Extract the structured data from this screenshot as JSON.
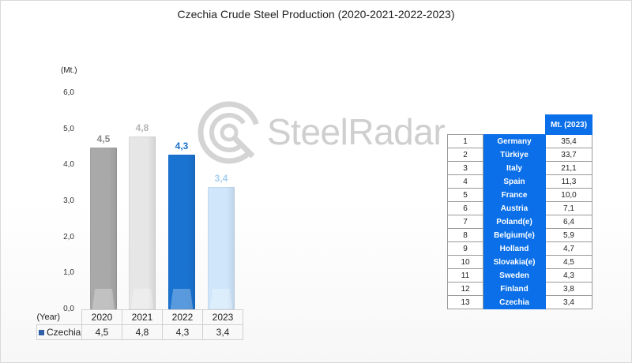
{
  "chart_data": {
    "type": "bar",
    "title": "Czechia Crude Steel Production (2020-2021-2022-2023)",
    "unit": "(Mt.)",
    "x_axis_label": "(Year)",
    "categories": [
      "2020",
      "2021",
      "2022",
      "2023"
    ],
    "series": [
      {
        "name": "Czechia",
        "values": [
          4.5,
          4.8,
          4.3,
          3.4
        ]
      }
    ],
    "data_labels": [
      "4,5",
      "4,8",
      "4,3",
      "3,4"
    ],
    "bar_colors": [
      "#a9a9a9",
      "#e6e6e6",
      "#1a73d1",
      "#cfe6fb"
    ],
    "label_colors": [
      "#8a8a8a",
      "#b4b4b4",
      "#1a6fc9",
      "#a6cdef"
    ],
    "ylim": [
      0,
      6
    ],
    "yticks": [
      "0,0",
      "1,0",
      "2,0",
      "3,0",
      "4,0",
      "5,0",
      "6,0"
    ],
    "table": {
      "row_label": "Czechia",
      "values": [
        "4,5",
        "4,8",
        "4,3",
        "3,4"
      ]
    }
  },
  "watermark": {
    "text": "SteelRadar"
  },
  "ranking": {
    "column_header": "Mt. (2023)",
    "rows": [
      {
        "rank": "1",
        "country": "Germany",
        "value": "35,4"
      },
      {
        "rank": "2",
        "country": "Türkiye",
        "value": "33,7"
      },
      {
        "rank": "3",
        "country": "Italy",
        "value": "21,1"
      },
      {
        "rank": "4",
        "country": "Spain",
        "value": "11,3"
      },
      {
        "rank": "5",
        "country": "France",
        "value": "10,0"
      },
      {
        "rank": "6",
        "country": "Austria",
        "value": "7,1"
      },
      {
        "rank": "7",
        "country": "Poland(e)",
        "value": "6,4"
      },
      {
        "rank": "8",
        "country": "Belgium(e)",
        "value": "5,9"
      },
      {
        "rank": "9",
        "country": "Holland",
        "value": "4,7"
      },
      {
        "rank": "10",
        "country": "Slovakia(e)",
        "value": "4,5"
      },
      {
        "rank": "11",
        "country": "Sweden",
        "value": "4,3"
      },
      {
        "rank": "12",
        "country": "Finland",
        "value": "3,8"
      },
      {
        "rank": "13",
        "country": "Czechia",
        "value": "3,4"
      }
    ]
  }
}
